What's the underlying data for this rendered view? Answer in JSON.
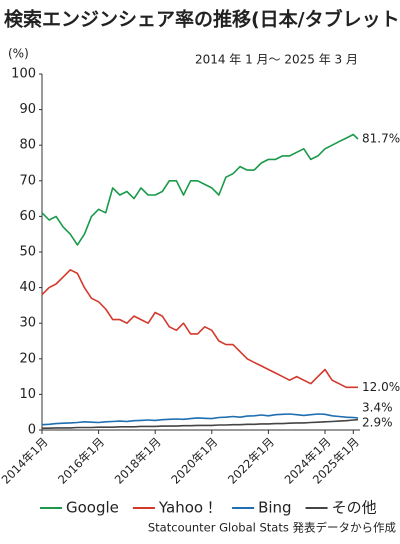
{
  "chart_data": {
    "type": "line",
    "title": "検索エンジンシェア率の推移(日本/タブレット)",
    "subtitle": "2014 年 1 月〜 2025 年 3 月",
    "y_label": "(%)",
    "source": "Statcounter Global Stats 発表データから作成",
    "x": [
      "2014-01",
      "2014-04",
      "2014-07",
      "2014-10",
      "2015-01",
      "2015-04",
      "2015-07",
      "2015-10",
      "2016-01",
      "2016-04",
      "2016-07",
      "2016-10",
      "2017-01",
      "2017-04",
      "2017-07",
      "2017-10",
      "2018-01",
      "2018-04",
      "2018-07",
      "2018-10",
      "2019-01",
      "2019-04",
      "2019-07",
      "2019-10",
      "2020-01",
      "2020-04",
      "2020-07",
      "2020-10",
      "2021-01",
      "2021-04",
      "2021-07",
      "2021-10",
      "2022-01",
      "2022-04",
      "2022-07",
      "2022-10",
      "2023-01",
      "2023-04",
      "2023-07",
      "2023-10",
      "2024-01",
      "2024-04",
      "2024-07",
      "2024-10",
      "2025-01",
      "2025-03"
    ],
    "xlim": [
      "2014-01",
      "2025-03"
    ],
    "xticks": [
      {
        "value": "2014-01",
        "label": "2014年1月"
      },
      {
        "value": "2016-01",
        "label": "2016年1月"
      },
      {
        "value": "2018-01",
        "label": "2018年1月"
      },
      {
        "value": "2020-01",
        "label": "2020年1月"
      },
      {
        "value": "2022-01",
        "label": "2022年1月"
      },
      {
        "value": "2024-01",
        "label": "2024年1月"
      },
      {
        "value": "2025-01",
        "label": "2025年1月"
      }
    ],
    "ylim": [
      0,
      100
    ],
    "yticks": [
      0,
      10,
      20,
      30,
      40,
      50,
      60,
      70,
      80,
      90,
      100
    ],
    "grid": false,
    "series": [
      {
        "name": "Google",
        "color": "#1a9a4a",
        "values": [
          61,
          59,
          60,
          57,
          55,
          52,
          55,
          60,
          62,
          61,
          68,
          66,
          67,
          65,
          68,
          66,
          66,
          67,
          70,
          70,
          66,
          70,
          70,
          69,
          68,
          66,
          71,
          72,
          74,
          73,
          73,
          75,
          76,
          76,
          77,
          77,
          78,
          79,
          76,
          77,
          79,
          80,
          81,
          82,
          83,
          81.7
        ],
        "value_labels": [
          null,
          null,
          null,
          null,
          null,
          null,
          null,
          null,
          null,
          null,
          null,
          null,
          null,
          null,
          null,
          null,
          null,
          null,
          null,
          null,
          null,
          null,
          null,
          null,
          null,
          null,
          null,
          null,
          null,
          null,
          null,
          null,
          null,
          null,
          null,
          null,
          null,
          null,
          null,
          null,
          null,
          null,
          null,
          null,
          null,
          "81.7%"
        ]
      },
      {
        "name": "Yahoo！",
        "color": "#d33a2c",
        "values": [
          38,
          40,
          41,
          43,
          45,
          44,
          40,
          37,
          36,
          34,
          31,
          31,
          30,
          32,
          31,
          30,
          33,
          32,
          29,
          28,
          30,
          27,
          27,
          29,
          28,
          25,
          24,
          24,
          22,
          20,
          19,
          18,
          17,
          16,
          15,
          14,
          15,
          14,
          13,
          15,
          17,
          14,
          13,
          12,
          12,
          12.0
        ],
        "value_labels": [
          null,
          null,
          null,
          null,
          null,
          null,
          null,
          null,
          null,
          null,
          null,
          null,
          null,
          null,
          null,
          null,
          null,
          null,
          null,
          null,
          null,
          null,
          null,
          null,
          null,
          null,
          null,
          null,
          null,
          null,
          null,
          null,
          null,
          null,
          null,
          null,
          null,
          null,
          null,
          null,
          null,
          null,
          null,
          null,
          null,
          "12.0%"
        ]
      },
      {
        "name": "Bing",
        "color": "#1f6fb0",
        "values": [
          1.5,
          1.6,
          1.8,
          1.9,
          2,
          2.1,
          2.3,
          2.2,
          2.1,
          2.3,
          2.4,
          2.5,
          2.4,
          2.6,
          2.7,
          2.8,
          2.7,
          2.9,
          3,
          3.1,
          3,
          3.2,
          3.4,
          3.3,
          3.2,
          3.5,
          3.6,
          3.8,
          3.6,
          3.9,
          4,
          4.2,
          4,
          4.3,
          4.4,
          4.5,
          4.3,
          4.1,
          4.3,
          4.5,
          4.4,
          4,
          3.8,
          3.6,
          3.5,
          3.4
        ],
        "value_labels": [
          null,
          null,
          null,
          null,
          null,
          null,
          null,
          null,
          null,
          null,
          null,
          null,
          null,
          null,
          null,
          null,
          null,
          null,
          null,
          null,
          null,
          null,
          null,
          null,
          null,
          null,
          null,
          null,
          null,
          null,
          null,
          null,
          null,
          null,
          null,
          null,
          null,
          null,
          null,
          null,
          null,
          null,
          null,
          null,
          null,
          "3.4%"
        ]
      },
      {
        "name": "その他",
        "color": "#444444",
        "values": [
          0.5,
          0.5,
          0.6,
          0.6,
          0.6,
          0.7,
          0.7,
          0.7,
          0.8,
          0.8,
          0.8,
          0.9,
          0.9,
          0.9,
          1,
          1,
          1,
          1.1,
          1.1,
          1.1,
          1.2,
          1.2,
          1.3,
          1.3,
          1.3,
          1.4,
          1.4,
          1.5,
          1.5,
          1.6,
          1.6,
          1.7,
          1.7,
          1.8,
          1.8,
          1.9,
          2,
          2,
          2.1,
          2.2,
          2.3,
          2.4,
          2.5,
          2.6,
          2.8,
          2.9
        ],
        "value_labels": [
          null,
          null,
          null,
          null,
          null,
          null,
          null,
          null,
          null,
          null,
          null,
          null,
          null,
          null,
          null,
          null,
          null,
          null,
          null,
          null,
          null,
          null,
          null,
          null,
          null,
          null,
          null,
          null,
          null,
          null,
          null,
          null,
          null,
          null,
          null,
          null,
          null,
          null,
          null,
          null,
          null,
          null,
          null,
          null,
          null,
          "2.9%"
        ]
      }
    ]
  }
}
